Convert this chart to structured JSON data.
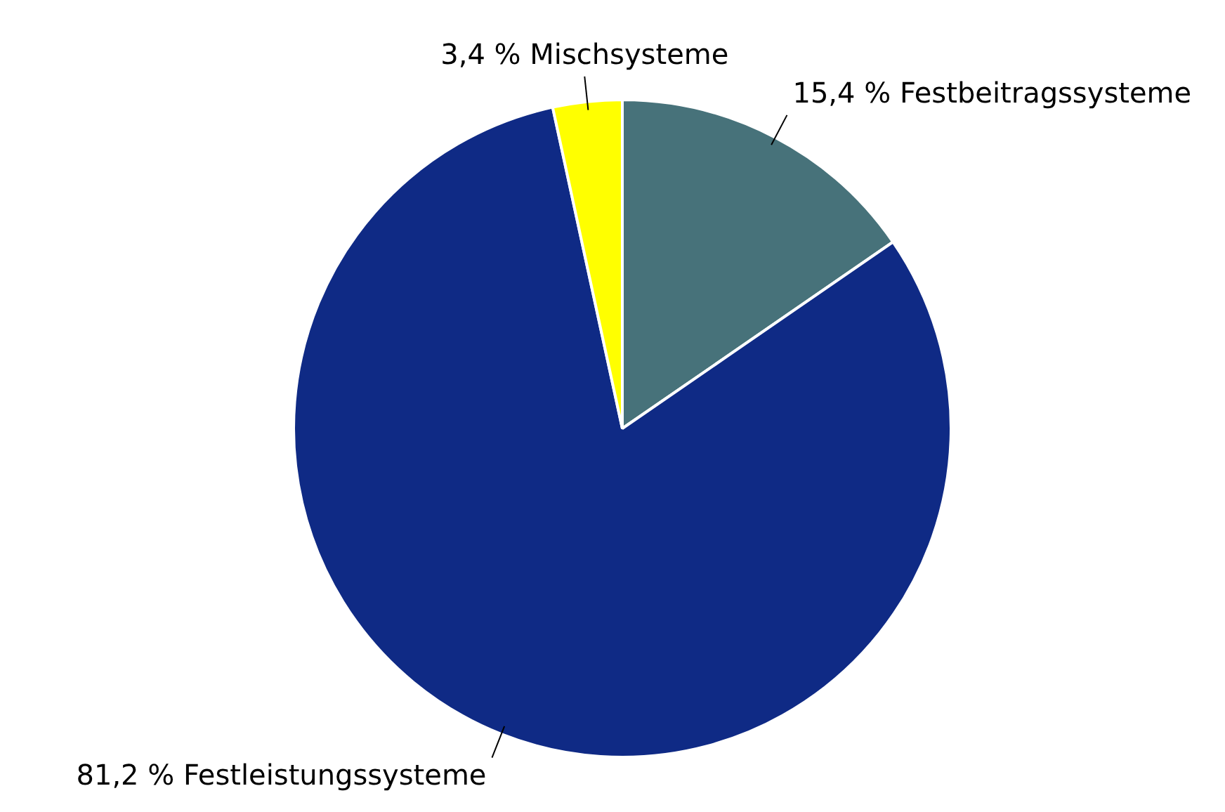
{
  "chart_data": {
    "type": "pie",
    "categories": [
      "Festbeitragssysteme",
      "Festleistungssysteme",
      "Mischsysteme"
    ],
    "values": [
      15.4,
      81.2,
      3.4
    ],
    "value_labels": [
      "15,4 %",
      "81,2 %",
      "3,4 %"
    ],
    "colors": [
      "#47727a",
      "#0f2a85",
      "#ffff00"
    ],
    "legend": false
  }
}
